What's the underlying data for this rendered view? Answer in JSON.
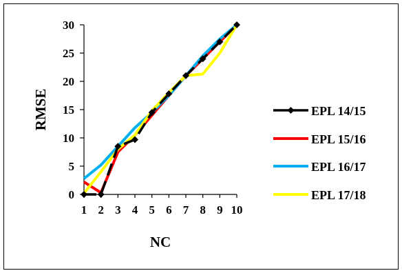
{
  "chart_data": {
    "type": "line",
    "xlabel": "NC",
    "ylabel": "RMSE",
    "x": [
      1,
      2,
      3,
      4,
      5,
      6,
      7,
      8,
      9,
      10
    ],
    "xticks": [
      "1",
      "2",
      "3",
      "4",
      "5",
      "6",
      "7",
      "8",
      "9",
      "10"
    ],
    "ylim": [
      0,
      30
    ],
    "yticks": [
      "0",
      "5",
      "10",
      "15",
      "20",
      "25",
      "30"
    ],
    "ytick_values": [
      0,
      5,
      10,
      15,
      20,
      25,
      30
    ],
    "grid": false,
    "legend_position": "right",
    "series": [
      {
        "name": "EPL 14/15",
        "color": "#000000",
        "marker": "diamond",
        "dashed": true,
        "values": [
          0,
          0,
          8.5,
          9.7,
          14.5,
          17.8,
          21,
          24,
          27,
          30
        ]
      },
      {
        "name": "EPL 15/16",
        "color": "#ff0000",
        "marker": "none",
        "dashed": false,
        "values": [
          2.2,
          0.3,
          7.5,
          10.5,
          14.0,
          17.5,
          21,
          24,
          27,
          30
        ]
      },
      {
        "name": "EPL 16/17",
        "color": "#00b0f0",
        "marker": "none",
        "dashed": false,
        "values": [
          2.8,
          5.2,
          8.5,
          11.8,
          14.5,
          17.5,
          21,
          24.5,
          27.5,
          30
        ]
      },
      {
        "name": "EPL 17/18",
        "color": "#ffff00",
        "marker": "none",
        "dashed": false,
        "values": [
          0.2,
          4.0,
          8.0,
          10.5,
          14.8,
          18,
          21,
          21.3,
          25,
          30
        ]
      }
    ]
  }
}
